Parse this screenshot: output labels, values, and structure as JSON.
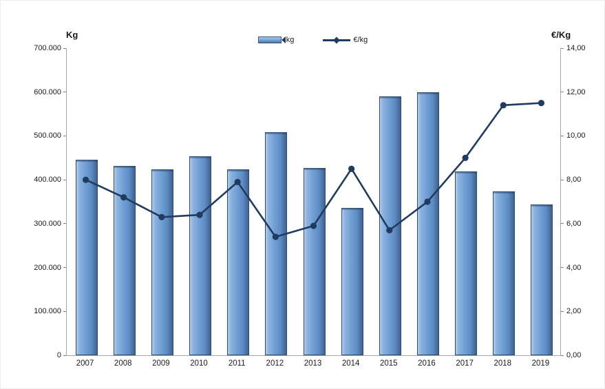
{
  "colors": {
    "bar_fill": "#6F9ED4",
    "bar_border": "#2B4B71",
    "line_color": "#1F3B5F",
    "axis_line": "#A6A6A6",
    "tick_mark": "#808080",
    "text": "#1A1A1A",
    "background": "#FFFFFF"
  },
  "chart_data": {
    "type": "combo",
    "title": "",
    "grid": false,
    "legend_position": "top-center",
    "categories": [
      "2007",
      "2008",
      "2009",
      "2010",
      "2011",
      "2012",
      "2013",
      "2014",
      "2015",
      "2016",
      "2017",
      "2018",
      "2019"
    ],
    "series": [
      {
        "name": "kg",
        "type": "bar",
        "axis": "left",
        "color": "#6F9ED4",
        "values": [
          443000,
          428000,
          420000,
          450000,
          421000,
          505000,
          424000,
          333000,
          587000,
          597000,
          416000,
          370000,
          340000
        ]
      },
      {
        "name": "€/kg",
        "type": "line",
        "axis": "right",
        "color": "#1F3B5F",
        "marker": "circle",
        "values": [
          8.0,
          7.2,
          6.3,
          6.4,
          7.9,
          5.4,
          5.9,
          8.5,
          5.7,
          7.0,
          9.0,
          11.4,
          11.5
        ]
      }
    ],
    "left_axis": {
      "title": "Kg",
      "min": 0,
      "max": 700000,
      "step": 100000,
      "tick_labels": [
        "700.000",
        "600.000",
        "500.000",
        "400.000",
        "300.000",
        "200.000",
        "100.000",
        "0"
      ]
    },
    "right_axis": {
      "title": "€/Kg",
      "min": 0,
      "max": 14,
      "step": 2,
      "tick_labels": [
        "14,00",
        "12,00",
        "10,00",
        "8,00",
        "6,00",
        "4,00",
        "2,00",
        "0,00"
      ]
    },
    "legend": {
      "kg_label": "kg",
      "eur_label": "€/kg"
    }
  }
}
